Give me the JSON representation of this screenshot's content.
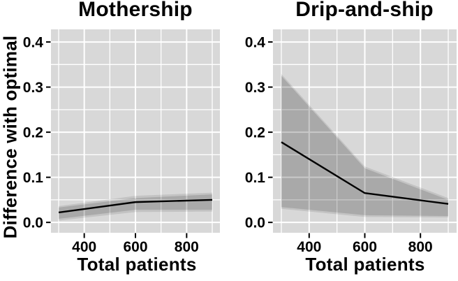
{
  "figure": {
    "ylabel": "Difference with optimal",
    "background": "#ffffff",
    "text_color": "#000000"
  },
  "chart_data": [
    {
      "type": "line",
      "title": "Mothership",
      "xlabel": "Total patients",
      "ylabel": "Difference with optimal",
      "x": [
        300,
        600,
        900
      ],
      "series": [
        {
          "name": "difference-with-optimal-median",
          "values": [
            0.022,
            0.045,
            0.05
          ]
        }
      ],
      "bands": [
        {
          "name": "outer-uncertainty-band",
          "low": [
            0.004,
            0.023,
            0.024
          ],
          "high": [
            0.036,
            0.059,
            0.066
          ]
        },
        {
          "name": "inner-uncertainty-band",
          "low": [
            0.008,
            0.028,
            0.028
          ],
          "high": [
            0.033,
            0.054,
            0.062
          ]
        }
      ],
      "xlim": [
        270,
        930
      ],
      "ylim": [
        -0.023,
        0.428
      ],
      "xticks": [
        400,
        600,
        800
      ],
      "xtick_labels": [
        "400",
        "600",
        "800"
      ],
      "yticks": [
        0.0,
        0.1,
        0.2,
        0.3,
        0.4
      ],
      "ytick_labels": [
        "0.0",
        "0.1",
        "0.2",
        "0.3",
        "0.4"
      ],
      "xminor": [
        300,
        500,
        700,
        900
      ],
      "yminor": [
        0.05,
        0.15,
        0.25,
        0.35
      ],
      "grid": true,
      "legend_position": "none",
      "colors": {
        "panel_bg": "#d8d8d8",
        "grid": "#ffffff",
        "line": "#000000",
        "band_outer": "rgba(0,0,0,0.095)",
        "band_inner": "rgba(0,0,0,0.13)",
        "tick": "#000000"
      }
    },
    {
      "type": "line",
      "title": "Drip-and-ship",
      "xlabel": "Total patients",
      "ylabel": "Difference with optimal",
      "x": [
        300,
        600,
        900
      ],
      "series": [
        {
          "name": "difference-with-optimal-median",
          "values": [
            0.178,
            0.065,
            0.041
          ]
        }
      ],
      "bands": [
        {
          "name": "outer-uncertainty-band",
          "low": [
            0.03,
            0.012,
            0.011
          ],
          "high": [
            0.329,
            0.124,
            0.054
          ]
        },
        {
          "name": "inner-uncertainty-band",
          "low": [
            0.034,
            0.016,
            0.014
          ],
          "high": [
            0.325,
            0.12,
            0.05
          ]
        }
      ],
      "xlim": [
        270,
        930
      ],
      "ylim": [
        -0.023,
        0.428
      ],
      "xticks": [
        400,
        600,
        800
      ],
      "xtick_labels": [
        "400",
        "600",
        "800"
      ],
      "yticks": [
        0.0,
        0.1,
        0.2,
        0.3,
        0.4
      ],
      "ytick_labels": [
        "0.0",
        "0.1",
        "0.2",
        "0.3",
        "0.4"
      ],
      "xminor": [
        300,
        500,
        700,
        900
      ],
      "yminor": [
        0.05,
        0.15,
        0.25,
        0.35
      ],
      "grid": true,
      "legend_position": "none",
      "colors": {
        "panel_bg": "#d8d8d8",
        "grid": "#ffffff",
        "line": "#000000",
        "band_outer": "rgba(0,0,0,0.095)",
        "band_inner": "rgba(0,0,0,0.13)",
        "tick": "#000000"
      }
    }
  ]
}
